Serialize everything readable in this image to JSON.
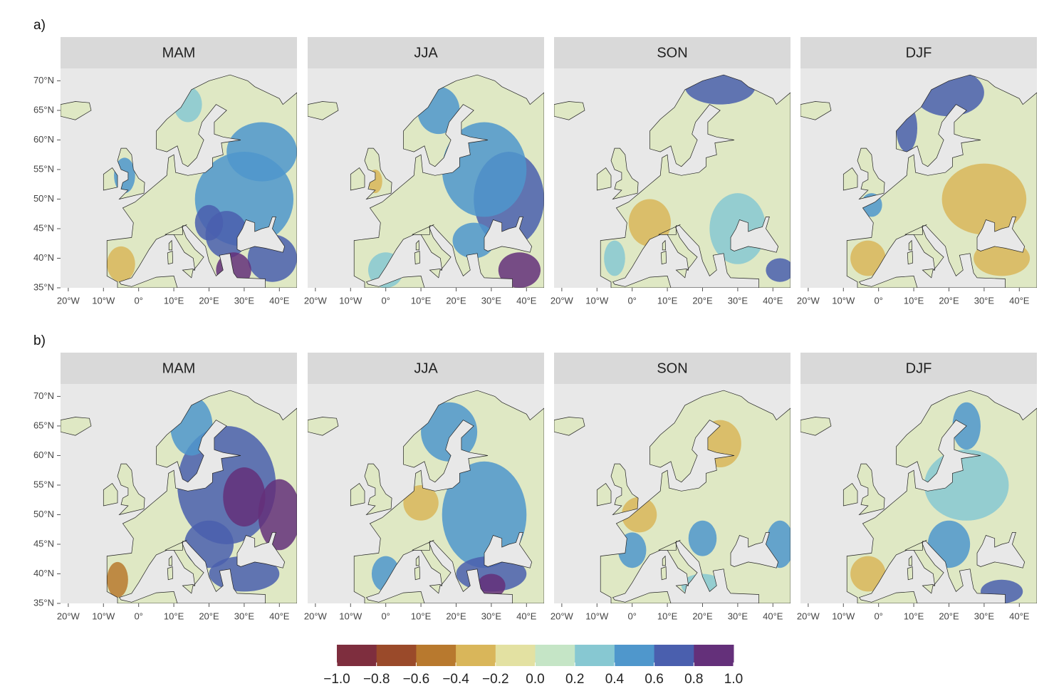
{
  "panels": [
    {
      "label": "a)",
      "maps": [
        {
          "title": "MAM"
        },
        {
          "title": "JJA"
        },
        {
          "title": "SON"
        },
        {
          "title": "DJF"
        }
      ]
    },
    {
      "label": "b)",
      "maps": [
        {
          "title": "MAM"
        },
        {
          "title": "JJA"
        },
        {
          "title": "SON"
        },
        {
          "title": "DJF"
        }
      ]
    }
  ],
  "axes": {
    "xlim": [
      -22.2,
      45
    ],
    "xticks": [
      {
        "value": -20,
        "label": "20°W"
      },
      {
        "value": -10,
        "label": "10°W"
      },
      {
        "value": 0,
        "label": "0°"
      },
      {
        "value": 10,
        "label": "10°E"
      },
      {
        "value": 20,
        "label": "20°E"
      },
      {
        "value": 30,
        "label": "30°E"
      },
      {
        "value": 40,
        "label": "40°E"
      }
    ],
    "ylim": [
      35,
      72.1
    ],
    "yticks": [
      {
        "value": 35,
        "label": "35°N"
      },
      {
        "value": 40,
        "label": "40°N"
      },
      {
        "value": 45,
        "label": "45°N"
      },
      {
        "value": 50,
        "label": "50°N"
      },
      {
        "value": 55,
        "label": "55°N"
      },
      {
        "value": 60,
        "label": "60°N"
      },
      {
        "value": 65,
        "label": "65°N"
      },
      {
        "value": 70,
        "label": "70°N"
      }
    ]
  },
  "colorbar": {
    "lim": [
      -1,
      1
    ],
    "ticks": [
      {
        "value": -1,
        "label": "−1.0"
      },
      {
        "value": -0.8,
        "label": "−0.8"
      },
      {
        "value": -0.6,
        "label": "−0.6"
      },
      {
        "value": -0.4,
        "label": "−0.4"
      },
      {
        "value": -0.2,
        "label": "−0.2"
      },
      {
        "value": 0,
        "label": "0.0"
      },
      {
        "value": 0.2,
        "label": "0.2"
      },
      {
        "value": 0.4,
        "label": "0.4"
      },
      {
        "value": 0.6,
        "label": "0.6"
      },
      {
        "value": 0.8,
        "label": "0.8"
      },
      {
        "value": 1,
        "label": "1.0"
      }
    ],
    "colors": [
      "#7e2e3e",
      "#9a4a2a",
      "#b8792e",
      "#d9b65a",
      "#e3e1a2",
      "#c5e5c6",
      "#87c8d2",
      "#4f97cc",
      "#4a5fae",
      "#64307a"
    ]
  }
}
